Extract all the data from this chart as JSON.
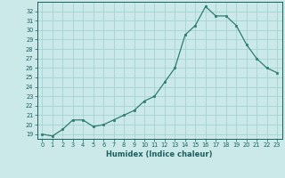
{
  "x": [
    0,
    1,
    2,
    3,
    4,
    5,
    6,
    7,
    8,
    9,
    10,
    11,
    12,
    13,
    14,
    15,
    16,
    17,
    18,
    19,
    20,
    21,
    22,
    23
  ],
  "y": [
    19,
    18.8,
    19.5,
    20.5,
    20.5,
    19.8,
    20,
    20.5,
    21,
    21.5,
    22.5,
    23,
    24.5,
    26,
    29.5,
    30.5,
    32.5,
    31.5,
    31.5,
    30.5,
    28.5,
    27,
    26,
    25.5
  ],
  "xlabel": "Humidex (Indice chaleur)",
  "xlim": [
    -0.5,
    23.5
  ],
  "ylim": [
    18.5,
    33.0
  ],
  "yticks": [
    19,
    20,
    21,
    22,
    23,
    24,
    25,
    26,
    27,
    28,
    29,
    30,
    31,
    32
  ],
  "xticks": [
    0,
    1,
    2,
    3,
    4,
    5,
    6,
    7,
    8,
    9,
    10,
    11,
    12,
    13,
    14,
    15,
    16,
    17,
    18,
    19,
    20,
    21,
    22,
    23
  ],
  "line_color": "#2e7d6e",
  "marker_color": "#2e7d6e",
  "bg_color": "#cce9e9",
  "grid_color": "#9ecfcf",
  "tick_color": "#1a5f5f",
  "label_color": "#1a5f5f"
}
